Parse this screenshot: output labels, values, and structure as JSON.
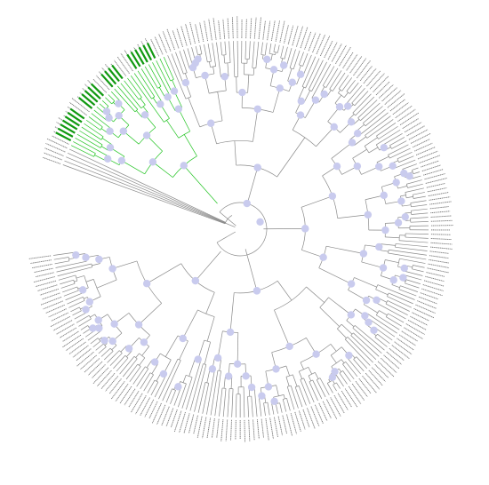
{
  "diagram": {
    "type": "circular-phylogenetic-tree",
    "leaf_count": 260,
    "label_prefix": "HPV",
    "label_suffix": "hsHuman",
    "colors": {
      "background": "#ffffff",
      "branch": "#8a8a8a",
      "highlight_branch": "#22c422",
      "highlight_leaf_bar": "#119911",
      "node_marker": "#c9cbee"
    },
    "highlighted_clade": "green",
    "node_support_markers": "circles"
  }
}
